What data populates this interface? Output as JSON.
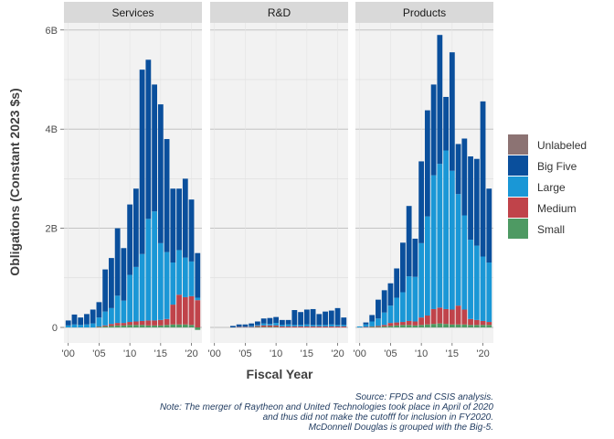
{
  "chart_data": {
    "type": "bar",
    "stacked": true,
    "xlabel": "Fiscal Year",
    "ylabel": "Obligations (Constant 2023 $s)",
    "ylim": [
      0,
      6200000000
    ],
    "y_ticks": [
      0,
      2000000000,
      4000000000,
      6000000000
    ],
    "y_tick_labels": [
      "0",
      "2B",
      "4B",
      "6B"
    ],
    "x_ticks": [
      2000,
      2005,
      2010,
      2015,
      2020
    ],
    "x_tick_labels": [
      "'00",
      "'05",
      "'10",
      "'15",
      "'20"
    ],
    "grid": true,
    "legend_position": "right",
    "series_order": [
      "Unlabeled",
      "Big Five",
      "Large",
      "Medium",
      "Small"
    ],
    "colors": {
      "Unlabeled": "#8c7373",
      "Big Five": "#0a4f9c",
      "Large": "#1a97d6",
      "Medium": "#c0434a",
      "Small": "#4e9a63"
    },
    "years": [
      2000,
      2001,
      2002,
      2003,
      2004,
      2005,
      2006,
      2007,
      2008,
      2009,
      2010,
      2011,
      2012,
      2013,
      2014,
      2015,
      2016,
      2017,
      2018,
      2019,
      2020,
      2021
    ],
    "panels": [
      {
        "label": "Services",
        "series": [
          {
            "name": "Small",
            "values": [
              0,
              0,
              0,
              0,
              0,
              0.01,
              0.02,
              0.03,
              0.04,
              0.04,
              0.05,
              0.05,
              0.05,
              0.04,
              0.04,
              0.04,
              0.05,
              0.06,
              0.06,
              0.06,
              0.05,
              -0.05
            ]
          },
          {
            "name": "Medium",
            "values": [
              0,
              0,
              0,
              0,
              0,
              0.01,
              0.02,
              0.04,
              0.05,
              0.05,
              0.06,
              0.07,
              0.08,
              0.1,
              0.1,
              0.11,
              0.12,
              0.4,
              0.6,
              0.55,
              0.58,
              0.55
            ]
          },
          {
            "name": "Large",
            "values": [
              0.04,
              0.06,
              0.05,
              0.06,
              0.08,
              0.18,
              0.28,
              0.32,
              0.55,
              0.45,
              0.95,
              1.1,
              1.35,
              2.05,
              2.2,
              1.55,
              1.35,
              0.85,
              0.9,
              0.8,
              0.7,
              0.05
            ]
          },
          {
            "name": "Big Five",
            "values": [
              0.1,
              0.2,
              0.15,
              0.21,
              0.28,
              0.31,
              0.85,
              1.01,
              1.36,
              1.06,
              1.42,
              1.58,
              3.72,
              3.21,
              2.56,
              2.8,
              2.28,
              1.49,
              1.24,
              1.59,
              1.25,
              0.9
            ]
          },
          {
            "name": "Unlabeled",
            "values": [
              0,
              0,
              0,
              0,
              0,
              0,
              0,
              0,
              0,
              0,
              0,
              0,
              0,
              0,
              0,
              0,
              0,
              0,
              0,
              0,
              0,
              0
            ]
          }
        ]
      },
      {
        "label": "R&D",
        "series": [
          {
            "name": "Small",
            "values": [
              0,
              0,
              0,
              0,
              0,
              0,
              0,
              0.01,
              0.01,
              0.01,
              0.01,
              0,
              0,
              0,
              0,
              0,
              0,
              0,
              0,
              0,
              0,
              0
            ]
          },
          {
            "name": "Medium",
            "values": [
              0,
              0,
              0,
              0,
              0.01,
              0.01,
              0.01,
              0.02,
              0.03,
              0.03,
              0.03,
              0.02,
              0.02,
              0.02,
              0.02,
              0.02,
              0.02,
              0.02,
              0.02,
              0.02,
              0.02,
              0.02
            ]
          },
          {
            "name": "Large",
            "values": [
              0,
              0,
              0,
              0,
              0.01,
              0.01,
              0.02,
              0.02,
              0.04,
              0.03,
              0.05,
              0.03,
              0.04,
              0.03,
              0.03,
              0.04,
              0.03,
              0.03,
              0.03,
              0.04,
              0.03,
              0.03
            ]
          },
          {
            "name": "Big Five",
            "values": [
              0,
              0,
              0,
              0.03,
              0.04,
              0.04,
              0.05,
              0.07,
              0.1,
              0.12,
              0.12,
              0.1,
              0.09,
              0.3,
              0.26,
              0.3,
              0.32,
              0.22,
              0.27,
              0.28,
              0.34,
              0.15
            ]
          },
          {
            "name": "Unlabeled",
            "values": [
              0,
              0,
              0,
              0,
              0,
              0,
              0,
              0,
              0,
              0,
              0,
              0,
              0,
              0,
              0,
              0,
              0,
              0,
              0,
              0,
              0,
              0
            ]
          }
        ]
      },
      {
        "label": "Products",
        "series": [
          {
            "name": "Small",
            "values": [
              0,
              0,
              0.01,
              0.01,
              0.02,
              0.03,
              0.04,
              0.05,
              0.05,
              0.04,
              0.05,
              0.06,
              0.07,
              0.08,
              0.07,
              0.06,
              0.06,
              0.06,
              0.05,
              0.05,
              0.05,
              0.05
            ]
          },
          {
            "name": "Medium",
            "values": [
              0,
              0.01,
              0.01,
              0.02,
              0.03,
              0.06,
              0.06,
              0.06,
              0.08,
              0.08,
              0.15,
              0.18,
              0.3,
              0.32,
              0.3,
              0.3,
              0.38,
              0.3,
              0.12,
              0.1,
              0.08,
              0.06
            ]
          },
          {
            "name": "Large",
            "values": [
              0.02,
              0.05,
              0.1,
              0.15,
              0.25,
              0.35,
              0.5,
              0.6,
              0.9,
              0.9,
              1.5,
              2.0,
              2.7,
              2.9,
              3.2,
              2.8,
              2.25,
              1.9,
              1.6,
              1.5,
              1.3,
              1.2
            ]
          },
          {
            "name": "Big Five",
            "values": [
              0,
              0.04,
              0.13,
              0.38,
              0.45,
              0.45,
              0.59,
              1.0,
              1.42,
              0.77,
              1.65,
              2.14,
              1.83,
              2.6,
              1.08,
              2.39,
              1.01,
              1.55,
              1.68,
              1.75,
              3.13,
              1.49
            ]
          },
          {
            "name": "Unlabeled",
            "values": [
              0,
              0,
              0,
              0,
              0,
              0,
              0,
              0,
              0,
              0,
              0,
              0,
              0,
              0,
              0,
              0,
              0,
              0,
              0,
              0,
              0,
              0
            ]
          }
        ]
      }
    ],
    "caption_lines": [
      "Source: FPDS and CSIS analysis.",
      "Note: The merger of Raytheon and United Technologies took place in April of 2020",
      "and thus did not make the cutofff for inclusion in FY2020.",
      "McDonnell Douglas is grouped with the Big-5."
    ]
  }
}
